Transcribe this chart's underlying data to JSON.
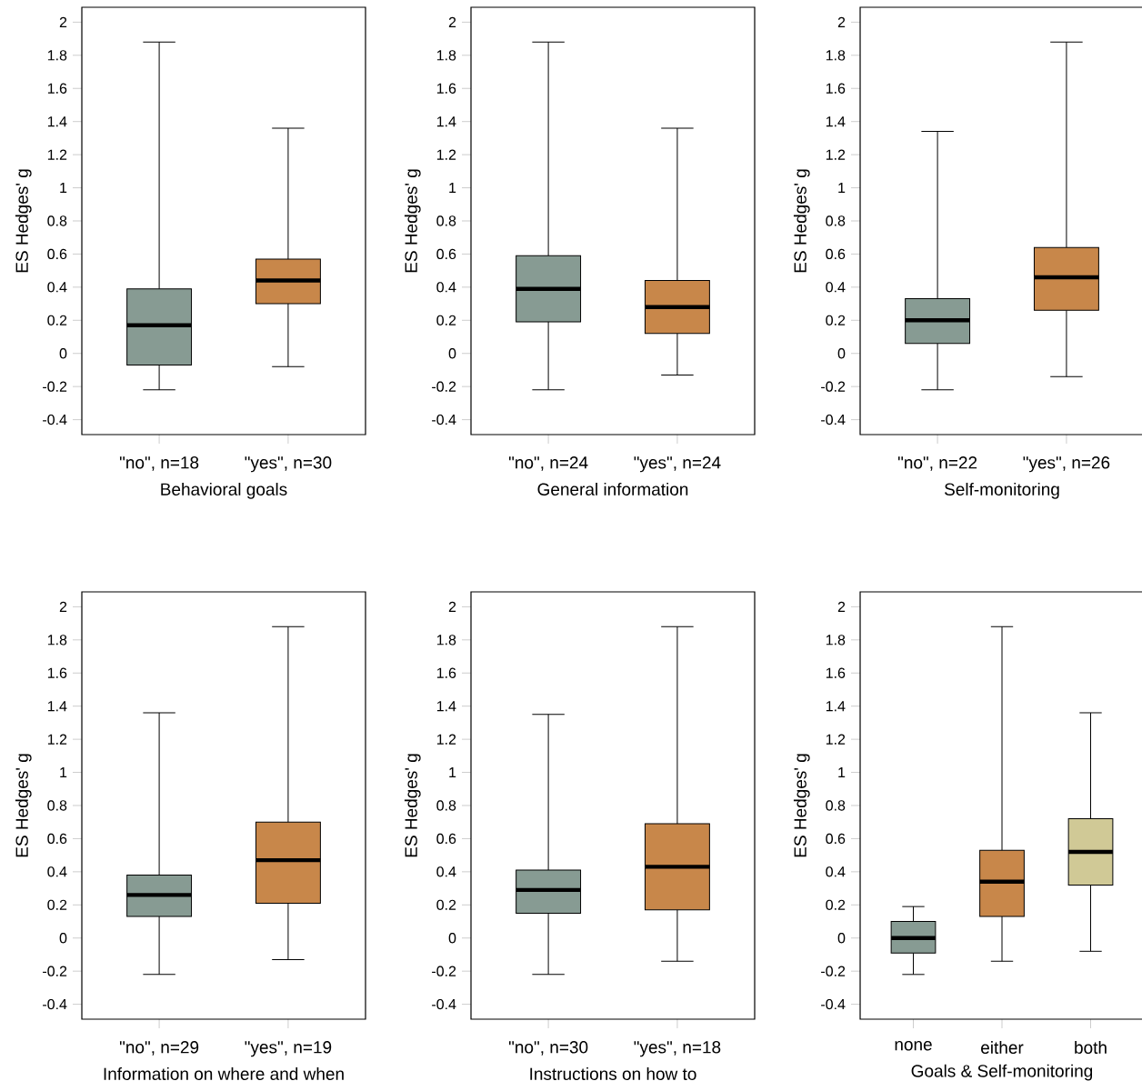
{
  "chart_data": [
    {
      "type": "box",
      "xlabel": "Behavioral goals",
      "ylabel": "ES Hedges' g",
      "categories": [
        "\"no\", n=18",
        "\"yes\", n=30"
      ],
      "colors": [
        "#879b93",
        "#c8874a"
      ],
      "ylim": [
        -0.49,
        2.09
      ],
      "yticks": [
        -0.4,
        -0.2,
        0,
        0.2,
        0.4,
        0.6,
        0.8,
        1,
        1.2,
        1.4,
        1.6,
        1.8,
        2
      ],
      "grid": false,
      "boxes": [
        {
          "low": -0.22,
          "q1": -0.07,
          "median": 0.17,
          "q3": 0.39,
          "high": 1.88
        },
        {
          "low": -0.08,
          "q1": 0.3,
          "median": 0.44,
          "q3": 0.57,
          "high": 1.36
        }
      ]
    },
    {
      "type": "box",
      "xlabel": "General information",
      "ylabel": "ES Hedges' g",
      "categories": [
        "\"no\", n=24",
        "\"yes\", n=24"
      ],
      "colors": [
        "#879b93",
        "#c8874a"
      ],
      "ylim": [
        -0.49,
        2.09
      ],
      "yticks": [
        -0.4,
        -0.2,
        0,
        0.2,
        0.4,
        0.6,
        0.8,
        1,
        1.2,
        1.4,
        1.6,
        1.8,
        2
      ],
      "grid": false,
      "boxes": [
        {
          "low": -0.22,
          "q1": 0.19,
          "median": 0.39,
          "q3": 0.59,
          "high": 1.88
        },
        {
          "low": -0.13,
          "q1": 0.12,
          "median": 0.28,
          "q3": 0.44,
          "high": 1.36
        }
      ]
    },
    {
      "type": "box",
      "xlabel": "Self-monitoring",
      "ylabel": "ES Hedges' g",
      "categories": [
        "\"no\", n=22",
        "\"yes\", n=26"
      ],
      "colors": [
        "#879b93",
        "#c8874a"
      ],
      "ylim": [
        -0.49,
        2.09
      ],
      "yticks": [
        -0.4,
        -0.2,
        0,
        0.2,
        0.4,
        0.6,
        0.8,
        1,
        1.2,
        1.4,
        1.6,
        1.8,
        2
      ],
      "grid": false,
      "boxes": [
        {
          "low": -0.22,
          "q1": 0.06,
          "median": 0.2,
          "q3": 0.33,
          "high": 1.34
        },
        {
          "low": -0.14,
          "q1": 0.26,
          "median": 0.46,
          "q3": 0.64,
          "high": 1.88
        }
      ]
    },
    {
      "type": "box",
      "xlabel": "Information on where and when",
      "ylabel": "ES Hedges' g",
      "categories": [
        "\"no\", n=29",
        "\"yes\", n=19"
      ],
      "colors": [
        "#879b93",
        "#c8874a"
      ],
      "ylim": [
        -0.49,
        2.09
      ],
      "yticks": [
        -0.4,
        -0.2,
        0,
        0.2,
        0.4,
        0.6,
        0.8,
        1,
        1.2,
        1.4,
        1.6,
        1.8,
        2
      ],
      "grid": false,
      "boxes": [
        {
          "low": -0.22,
          "q1": 0.13,
          "median": 0.26,
          "q3": 0.38,
          "high": 1.36
        },
        {
          "low": -0.13,
          "q1": 0.21,
          "median": 0.47,
          "q3": 0.7,
          "high": 1.88
        }
      ]
    },
    {
      "type": "box",
      "xlabel": "Instructions on how to",
      "ylabel": "ES Hedges' g",
      "categories": [
        "\"no\", n=30",
        "\"yes\", n=18"
      ],
      "colors": [
        "#879b93",
        "#c8874a"
      ],
      "ylim": [
        -0.49,
        2.09
      ],
      "yticks": [
        -0.4,
        -0.2,
        0,
        0.2,
        0.4,
        0.6,
        0.8,
        1,
        1.2,
        1.4,
        1.6,
        1.8,
        2
      ],
      "grid": false,
      "boxes": [
        {
          "low": -0.22,
          "q1": 0.15,
          "median": 0.29,
          "q3": 0.41,
          "high": 1.35
        },
        {
          "low": -0.14,
          "q1": 0.17,
          "median": 0.43,
          "q3": 0.69,
          "high": 1.88
        }
      ]
    },
    {
      "type": "box",
      "xlabel": "Goals & Self-monitoring",
      "ylabel": "ES Hedges' g",
      "categories": [
        "none",
        "either",
        "both"
      ],
      "colors": [
        "#879b93",
        "#c8874a",
        "#d0c996"
      ],
      "ylim": [
        -0.49,
        2.09
      ],
      "yticks": [
        -0.4,
        -0.2,
        0,
        0.2,
        0.4,
        0.6,
        0.8,
        1,
        1.2,
        1.4,
        1.6,
        1.8,
        2
      ],
      "grid": false,
      "boxes": [
        {
          "low": -0.22,
          "q1": -0.09,
          "median": 0.0,
          "q3": 0.1,
          "high": 0.19
        },
        {
          "low": -0.14,
          "q1": 0.13,
          "median": 0.34,
          "q3": 0.53,
          "high": 1.88
        },
        {
          "low": -0.08,
          "q1": 0.32,
          "median": 0.52,
          "q3": 0.72,
          "high": 1.36
        }
      ]
    }
  ]
}
